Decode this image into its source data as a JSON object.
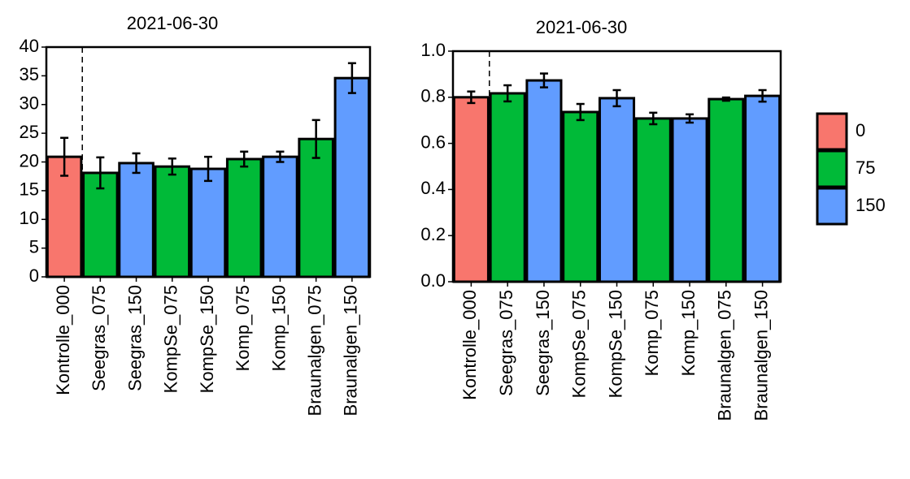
{
  "chart_data": [
    {
      "type": "bar",
      "title": "2021-06-30",
      "categories": [
        "Kontrolle_000",
        "Seegras_075",
        "Seegras_150",
        "KompSe_075",
        "KompSe_150",
        "Komp_075",
        "Komp_150",
        "Braunalgen_075",
        "Braunalgen_150"
      ],
      "values": [
        20.9,
        18.1,
        19.8,
        19.2,
        18.8,
        20.5,
        20.9,
        24.0,
        34.6
      ],
      "errors": [
        3.3,
        2.7,
        1.7,
        1.4,
        2.1,
        1.3,
        0.9,
        3.3,
        2.6
      ],
      "colors": [
        "#f8766d",
        "#00ba38",
        "#619cff",
        "#00ba38",
        "#619cff",
        "#00ba38",
        "#619cff",
        "#00ba38",
        "#619cff"
      ],
      "ylim": [
        0,
        40
      ],
      "yticks": [
        0,
        5,
        10,
        15,
        20,
        25,
        30,
        35,
        40
      ]
    },
    {
      "type": "bar",
      "title": "2021-06-30",
      "categories": [
        "Kontrolle_000",
        "Seegras_075",
        "Seegras_150",
        "KompSe_075",
        "KompSe_150",
        "Komp_075",
        "Komp_150",
        "Braunalgen_075",
        "Braunalgen_150"
      ],
      "values": [
        0.8,
        0.817,
        0.873,
        0.736,
        0.796,
        0.708,
        0.708,
        0.792,
        0.806
      ],
      "errors": [
        0.025,
        0.035,
        0.03,
        0.035,
        0.035,
        0.025,
        0.018,
        0.007,
        0.025
      ],
      "colors": [
        "#f8766d",
        "#00ba38",
        "#619cff",
        "#00ba38",
        "#619cff",
        "#00ba38",
        "#619cff",
        "#00ba38",
        "#619cff"
      ],
      "ylim": [
        0,
        1.0
      ],
      "yticks": [
        {
          "value": 0,
          "label": "0.0"
        },
        0.2,
        0.4,
        0.6,
        0.8,
        {
          "value": 1,
          "label": "1.0"
        }
      ]
    }
  ],
  "legend": [
    {
      "name": "0",
      "color": "#f8766d"
    },
    {
      "name": "75",
      "color": "#00ba38"
    },
    {
      "name": "150",
      "color": "#619cff"
    }
  ]
}
